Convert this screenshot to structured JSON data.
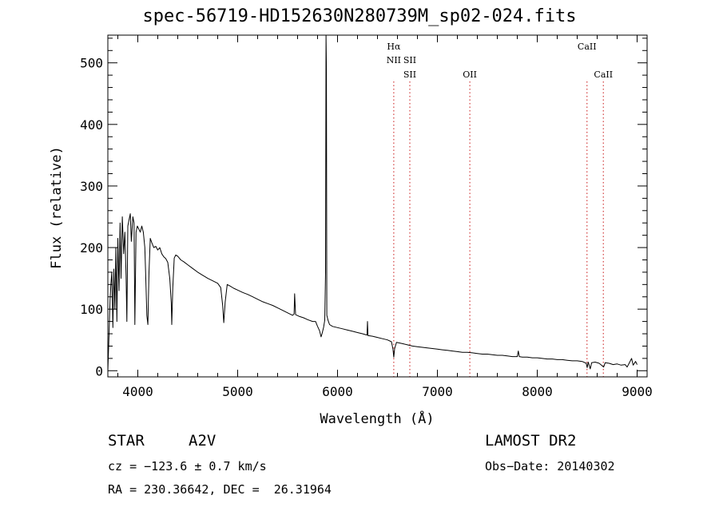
{
  "chart_data": {
    "type": "line",
    "title": "spec-56719-HD152630N280739M_sp02-024.fits",
    "xlabel": "Wavelength (Å)",
    "ylabel": "Flux (relative)",
    "xlim": [
      3700,
      9100
    ],
    "ylim": [
      -10,
      545
    ],
    "xticks": [
      4000,
      5000,
      6000,
      7000,
      8000,
      9000
    ],
    "yticks": [
      0,
      100,
      200,
      300,
      400,
      500
    ],
    "grid": false,
    "spectrum_color": "#000000",
    "line_marker_color": "#d23c3c",
    "series": [
      {
        "points": [
          [
            3700,
            0
          ],
          [
            3712,
            60
          ],
          [
            3722,
            115
          ],
          [
            3730,
            140
          ],
          [
            3740,
            160
          ],
          [
            3750,
            70
          ],
          [
            3760,
            165
          ],
          [
            3770,
            100
          ],
          [
            3780,
            200
          ],
          [
            3790,
            80
          ],
          [
            3800,
            215
          ],
          [
            3812,
            130
          ],
          [
            3822,
            240
          ],
          [
            3832,
            150
          ],
          [
            3845,
            250
          ],
          [
            3858,
            190
          ],
          [
            3870,
            225
          ],
          [
            3882,
            155
          ],
          [
            3890,
            80
          ],
          [
            3900,
            235
          ],
          [
            3912,
            245
          ],
          [
            3925,
            255
          ],
          [
            3935,
            210
          ],
          [
            3950,
            250
          ],
          [
            3962,
            240
          ],
          [
            3970,
            75
          ],
          [
            3982,
            225
          ],
          [
            3995,
            235
          ],
          [
            4010,
            230
          ],
          [
            4025,
            225
          ],
          [
            4040,
            235
          ],
          [
            4055,
            225
          ],
          [
            4070,
            200
          ],
          [
            4080,
            150
          ],
          [
            4090,
            90
          ],
          [
            4101,
            75
          ],
          [
            4112,
            160
          ],
          [
            4125,
            215
          ],
          [
            4140,
            208
          ],
          [
            4160,
            200
          ],
          [
            4180,
            202
          ],
          [
            4200,
            196
          ],
          [
            4220,
            200
          ],
          [
            4240,
            190
          ],
          [
            4260,
            185
          ],
          [
            4280,
            182
          ],
          [
            4300,
            176
          ],
          [
            4320,
            150
          ],
          [
            4335,
            110
          ],
          [
            4340,
            75
          ],
          [
            4350,
            135
          ],
          [
            4365,
            183
          ],
          [
            4380,
            188
          ],
          [
            4400,
            186
          ],
          [
            4430,
            180
          ],
          [
            4460,
            177
          ],
          [
            4500,
            172
          ],
          [
            4550,
            166
          ],
          [
            4600,
            160
          ],
          [
            4650,
            155
          ],
          [
            4700,
            150
          ],
          [
            4750,
            146
          ],
          [
            4800,
            142
          ],
          [
            4830,
            135
          ],
          [
            4850,
            105
          ],
          [
            4861,
            78
          ],
          [
            4875,
            112
          ],
          [
            4895,
            140
          ],
          [
            4920,
            138
          ],
          [
            4960,
            134
          ],
          [
            5000,
            131
          ],
          [
            5050,
            127
          ],
          [
            5100,
            124
          ],
          [
            5150,
            120
          ],
          [
            5200,
            116
          ],
          [
            5250,
            112
          ],
          [
            5300,
            109
          ],
          [
            5350,
            106
          ],
          [
            5400,
            102
          ],
          [
            5450,
            98
          ],
          [
            5500,
            94
          ],
          [
            5550,
            90
          ],
          [
            5565,
            92
          ],
          [
            5570,
            125
          ],
          [
            5580,
            91
          ],
          [
            5620,
            88
          ],
          [
            5660,
            86
          ],
          [
            5700,
            83
          ],
          [
            5750,
            80
          ],
          [
            5780,
            80
          ],
          [
            5800,
            72
          ],
          [
            5820,
            65
          ],
          [
            5835,
            55
          ],
          [
            5845,
            60
          ],
          [
            5860,
            70
          ],
          [
            5872,
            82
          ],
          [
            5880,
            160
          ],
          [
            5885,
            545
          ],
          [
            5889,
            490
          ],
          [
            5893,
            90
          ],
          [
            5905,
            82
          ],
          [
            5920,
            75
          ],
          [
            5950,
            72
          ],
          [
            6000,
            70
          ],
          [
            6050,
            68
          ],
          [
            6100,
            66
          ],
          [
            6150,
            64
          ],
          [
            6200,
            62
          ],
          [
            6250,
            60
          ],
          [
            6295,
            58
          ],
          [
            6300,
            80
          ],
          [
            6305,
            57
          ],
          [
            6350,
            56
          ],
          [
            6400,
            54
          ],
          [
            6450,
            52
          ],
          [
            6500,
            50
          ],
          [
            6540,
            47
          ],
          [
            6555,
            35
          ],
          [
            6563,
            22
          ],
          [
            6572,
            36
          ],
          [
            6590,
            46
          ],
          [
            6650,
            44
          ],
          [
            6700,
            42
          ],
          [
            6750,
            40
          ],
          [
            6800,
            39
          ],
          [
            6850,
            38
          ],
          [
            6900,
            37
          ],
          [
            6950,
            36
          ],
          [
            7000,
            35
          ],
          [
            7050,
            34
          ],
          [
            7100,
            33
          ],
          [
            7150,
            32
          ],
          [
            7200,
            31
          ],
          [
            7250,
            30
          ],
          [
            7300,
            30
          ],
          [
            7350,
            29
          ],
          [
            7400,
            28
          ],
          [
            7450,
            27
          ],
          [
            7500,
            27
          ],
          [
            7550,
            26
          ],
          [
            7600,
            25
          ],
          [
            7650,
            25
          ],
          [
            7700,
            24
          ],
          [
            7750,
            23
          ],
          [
            7800,
            23
          ],
          [
            7810,
            32
          ],
          [
            7820,
            23
          ],
          [
            7850,
            22
          ],
          [
            7900,
            22
          ],
          [
            7950,
            21
          ],
          [
            8000,
            21
          ],
          [
            8050,
            20
          ],
          [
            8100,
            19
          ],
          [
            8150,
            19
          ],
          [
            8200,
            18
          ],
          [
            8250,
            18
          ],
          [
            8300,
            17
          ],
          [
            8350,
            16
          ],
          [
            8400,
            16
          ],
          [
            8450,
            15
          ],
          [
            8490,
            12
          ],
          [
            8500,
            5
          ],
          [
            8510,
            14
          ],
          [
            8530,
            3
          ],
          [
            8545,
            13
          ],
          [
            8580,
            14
          ],
          [
            8620,
            12
          ],
          [
            8650,
            8
          ],
          [
            8665,
            6
          ],
          [
            8680,
            13
          ],
          [
            8720,
            12
          ],
          [
            8760,
            10
          ],
          [
            8800,
            11
          ],
          [
            8840,
            9
          ],
          [
            8880,
            10
          ],
          [
            8900,
            6
          ],
          [
            8920,
            12
          ],
          [
            8945,
            20
          ],
          [
            8960,
            9
          ],
          [
            8985,
            15
          ],
          [
            9000,
            10
          ]
        ]
      }
    ],
    "line_markers": [
      {
        "label": "Hα",
        "wavelength": 6563,
        "row": 0
      },
      {
        "label": "NII",
        "wavelength": 6563,
        "row": 1
      },
      {
        "label": "SII",
        "wavelength": 6724,
        "row": 1
      },
      {
        "label": "SII",
        "wavelength": 6724,
        "row": 2
      },
      {
        "label": "OII",
        "wavelength": 7325,
        "row": 2
      },
      {
        "label": "CaII",
        "wavelength": 8498,
        "row": 0
      },
      {
        "label": "CaII",
        "wavelength": 8662,
        "row": 2
      }
    ]
  },
  "info": {
    "object_type": "STAR",
    "subclass": "A2V",
    "survey": "LAMOST DR2",
    "cz": "cz = −123.6 ± 0.7 km/s",
    "obs_date": "Obs−Date: 20140302",
    "coords": "RA = 230.36642, DEC =  26.31964"
  }
}
